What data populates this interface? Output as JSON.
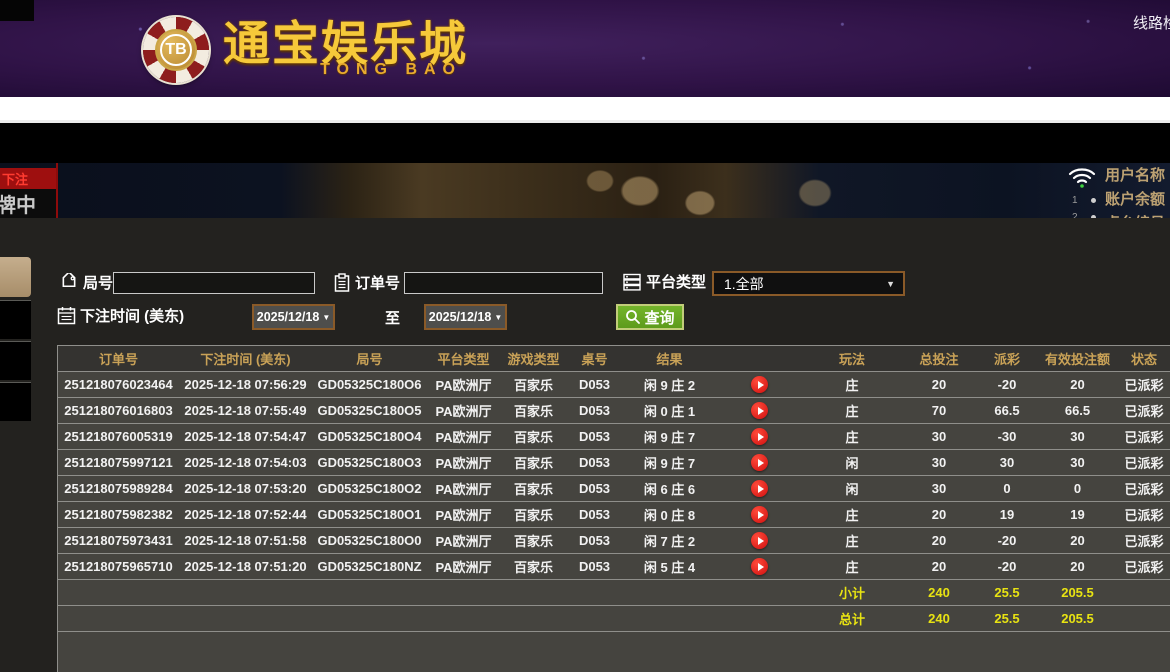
{
  "header": {
    "logo": {
      "chip_text": "TB",
      "title": "通宝娱乐城",
      "subtitle": "TONG BAO"
    },
    "line_check_link": "线路检测"
  },
  "video_bar": {
    "bet_badge": "下注",
    "card_status": "牌中",
    "line_numbers": [
      "1",
      "2"
    ],
    "user_info_labels": [
      "用户名称",
      "账户余额",
      "桌台编号"
    ]
  },
  "filters": {
    "game_no_label": "局号",
    "order_no_label": "订单号",
    "platform_label": "平台类型",
    "platform_value": "1.全部",
    "bet_time_label": "下注时间 (美东)",
    "date_from": "2025/12/18",
    "date_to": "2025/12/18",
    "to_label": "至",
    "query_label": "查询",
    "caret": "▼"
  },
  "table": {
    "headers": {
      "order_no": "订单号",
      "bet_time": "下注时间 (美东)",
      "game_no": "局号",
      "platform": "平台类型",
      "game_type": "游戏类型",
      "table_no": "桌号",
      "result": "结果",
      "video": "",
      "play": "玩法",
      "total_bet": "总投注",
      "payout": "派彩",
      "valid_bet": "有效投注额",
      "status": "状态"
    },
    "rows": [
      {
        "order_no": "251218076023464",
        "bet_time": "2025-12-18 07:56:29",
        "game_no": "GD05325C180O6",
        "platform": "PA欧洲厅",
        "game_type": "百家乐",
        "table_no": "D053",
        "result": "闲 9 庄 2",
        "play": "庄",
        "total_bet": "20",
        "payout": "-20",
        "valid_bet": "20",
        "status": "已派彩"
      },
      {
        "order_no": "251218076016803",
        "bet_time": "2025-12-18 07:55:49",
        "game_no": "GD05325C180O5",
        "platform": "PA欧洲厅",
        "game_type": "百家乐",
        "table_no": "D053",
        "result": "闲 0 庄 1",
        "play": "庄",
        "total_bet": "70",
        "payout": "66.5",
        "valid_bet": "66.5",
        "status": "已派彩"
      },
      {
        "order_no": "251218076005319",
        "bet_time": "2025-12-18 07:54:47",
        "game_no": "GD05325C180O4",
        "platform": "PA欧洲厅",
        "game_type": "百家乐",
        "table_no": "D053",
        "result": "闲 9 庄 7",
        "play": "庄",
        "total_bet": "30",
        "payout": "-30",
        "valid_bet": "30",
        "status": "已派彩"
      },
      {
        "order_no": "251218075997121",
        "bet_time": "2025-12-18 07:54:03",
        "game_no": "GD05325C180O3",
        "platform": "PA欧洲厅",
        "game_type": "百家乐",
        "table_no": "D053",
        "result": "闲 9 庄 7",
        "play": "闲",
        "total_bet": "30",
        "payout": "30",
        "valid_bet": "30",
        "status": "已派彩"
      },
      {
        "order_no": "251218075989284",
        "bet_time": "2025-12-18 07:53:20",
        "game_no": "GD05325C180O2",
        "platform": "PA欧洲厅",
        "game_type": "百家乐",
        "table_no": "D053",
        "result": "闲 6 庄 6",
        "play": "闲",
        "total_bet": "30",
        "payout": "0",
        "valid_bet": "0",
        "status": "已派彩"
      },
      {
        "order_no": "251218075982382",
        "bet_time": "2025-12-18 07:52:44",
        "game_no": "GD05325C180O1",
        "platform": "PA欧洲厅",
        "game_type": "百家乐",
        "table_no": "D053",
        "result": "闲 0 庄 8",
        "play": "庄",
        "total_bet": "20",
        "payout": "19",
        "valid_bet": "19",
        "status": "已派彩"
      },
      {
        "order_no": "251218075973431",
        "bet_time": "2025-12-18 07:51:58",
        "game_no": "GD05325C180O0",
        "platform": "PA欧洲厅",
        "game_type": "百家乐",
        "table_no": "D053",
        "result": "闲 7 庄 2",
        "play": "庄",
        "total_bet": "20",
        "payout": "-20",
        "valid_bet": "20",
        "status": "已派彩"
      },
      {
        "order_no": "251218075965710",
        "bet_time": "2025-12-18 07:51:20",
        "game_no": "GD05325C180NZ",
        "platform": "PA欧洲厅",
        "game_type": "百家乐",
        "table_no": "D053",
        "result": "闲 5 庄 4",
        "play": "庄",
        "total_bet": "20",
        "payout": "-20",
        "valid_bet": "20",
        "status": "已派彩"
      }
    ],
    "summary_rows": [
      {
        "label": "小计",
        "total_bet": "240",
        "payout": "25.5",
        "valid_bet": "205.5"
      },
      {
        "label": "总计",
        "total_bet": "240",
        "payout": "25.5",
        "valid_bet": "205.5"
      }
    ]
  },
  "icons": {
    "chip": "casino-chip",
    "tag": "tag-icon",
    "clipboard": "clipboard-icon",
    "calendar": "calendar-icon",
    "platform": "server-stack-icon",
    "search": "magnifier-icon",
    "wifi": "wifi-icon",
    "play": "play-icon"
  },
  "colors": {
    "header_purple": "#301347",
    "accent_gold": "#c9a257",
    "logo_gold": "#f6c93a",
    "payout_negative_green": "#4dff1f",
    "payout_positive_red": "#c11330",
    "status_green": "#2ce82c",
    "summary_yellow": "#e8e312",
    "query_green": "#6aa824",
    "date_border_brown": "#8a5a28",
    "bet_badge_red": "#9e0f0f"
  }
}
